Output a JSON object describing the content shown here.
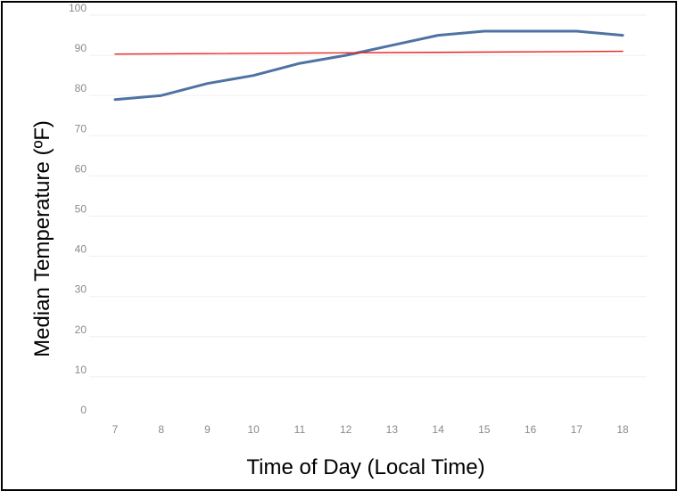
{
  "chart_data": {
    "type": "line",
    "xlabel": "Time of Day (Local Time)",
    "ylabel": "Median Temperature (ºF)",
    "ylim": [
      0,
      100
    ],
    "xlim": [
      7,
      18
    ],
    "y_ticks": [
      "0",
      "10",
      "20",
      "30",
      "40",
      "50",
      "60",
      "70",
      "80",
      "90",
      "100"
    ],
    "x_ticks": [
      "7",
      "8",
      "9",
      "10",
      "11",
      "12",
      "13",
      "14",
      "15",
      "16",
      "17",
      "18"
    ],
    "grid": true,
    "series": [
      {
        "color": "#4e73a3",
        "x": [
          7,
          8,
          9,
          10,
          11,
          12,
          13,
          14,
          15,
          16,
          17,
          18
        ],
        "values": [
          79,
          80,
          83,
          85,
          88,
          90,
          92.5,
          95,
          96,
          96,
          96,
          95
        ]
      },
      {
        "color": "#e8231f",
        "x": [
          7,
          18
        ],
        "values": [
          90.3,
          91
        ]
      }
    ]
  }
}
